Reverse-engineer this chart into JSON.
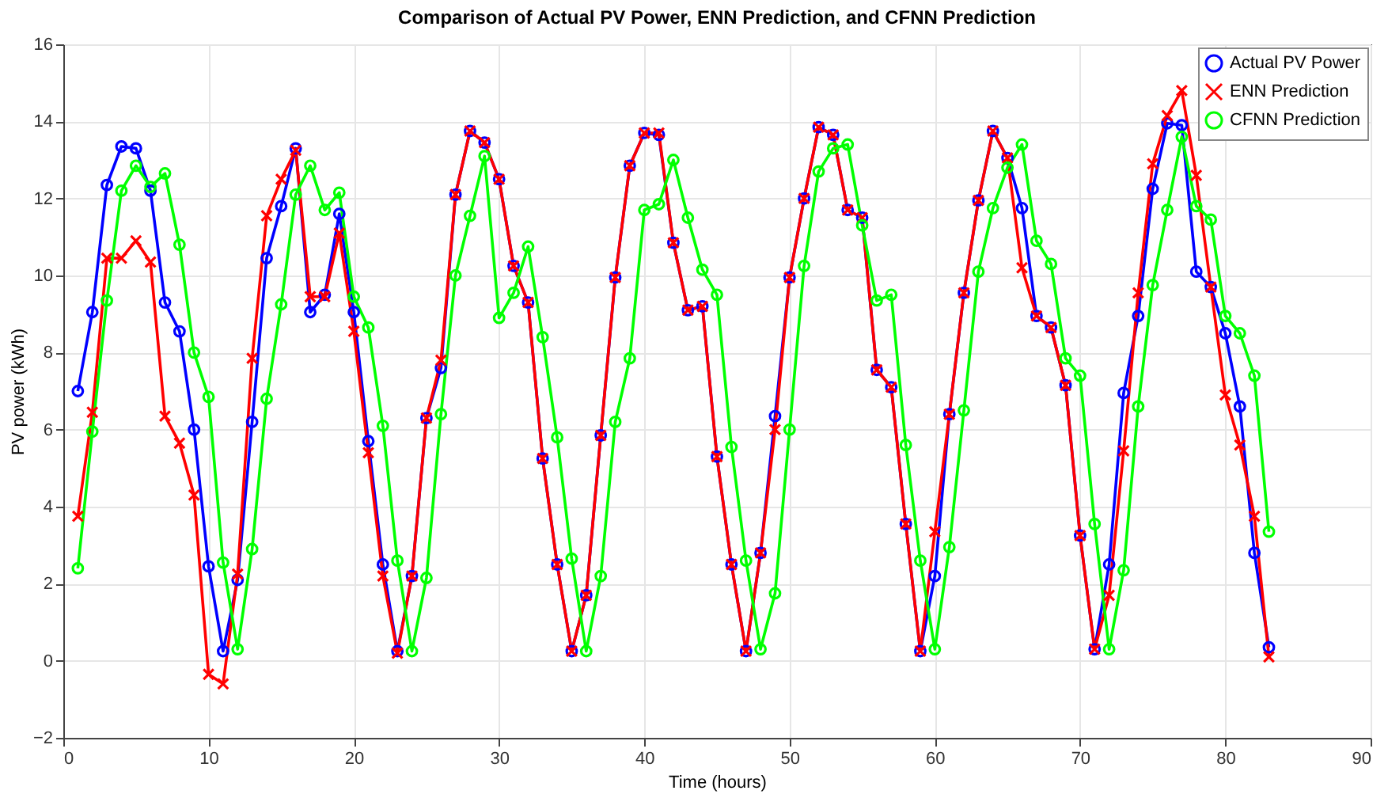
{
  "chart_data": {
    "type": "line",
    "title": "Comparison of Actual PV Power, ENN Prediction, and CFNN Prediction",
    "xlabel": "Time (hours)",
    "ylabel": "PV power (kWh)",
    "x": [
      1,
      2,
      3,
      4,
      5,
      6,
      7,
      8,
      9,
      10,
      11,
      12,
      13,
      14,
      15,
      16,
      17,
      18,
      19,
      20,
      21,
      22,
      23,
      24,
      25,
      26,
      27,
      28,
      29,
      30,
      31,
      32,
      33,
      34,
      35,
      36,
      37,
      38,
      39,
      40,
      41,
      42,
      43,
      44,
      45,
      46,
      47,
      48,
      49,
      50,
      51,
      52,
      53,
      54,
      55,
      56,
      57,
      58,
      59,
      60,
      61,
      62,
      63,
      64,
      65,
      66,
      67,
      68,
      69,
      70,
      71,
      72,
      73,
      74,
      75,
      76,
      77,
      78,
      79,
      80,
      81,
      82,
      83
    ],
    "series": [
      {
        "name": "Actual PV Power",
        "color": "#0000ff",
        "marker": "circle",
        "values": [
          7.0,
          9.05,
          12.35,
          13.35,
          13.3,
          12.2,
          9.3,
          8.55,
          6.0,
          2.45,
          0.25,
          2.1,
          6.2,
          10.45,
          11.8,
          13.3,
          9.05,
          9.5,
          11.6,
          9.05,
          5.7,
          2.5,
          0.25,
          2.2,
          6.3,
          7.6,
          12.1,
          13.75,
          13.45,
          12.5,
          10.25,
          9.3,
          5.25,
          2.5,
          0.25,
          1.7,
          5.85,
          9.95,
          12.85,
          13.7,
          13.65,
          10.85,
          9.1,
          9.2,
          5.3,
          2.5,
          0.25,
          2.8,
          6.35,
          9.95,
          12.0,
          13.85,
          13.65,
          11.7,
          11.5,
          7.55,
          7.1,
          3.55,
          0.25,
          2.2,
          6.4,
          9.55,
          11.95,
          13.75,
          13.05,
          11.75,
          8.95,
          8.65,
          7.15,
          3.25,
          0.3,
          2.5,
          6.95,
          8.95,
          12.25,
          13.95,
          13.9,
          10.1,
          9.7,
          8.5,
          6.6,
          2.8,
          0.35
        ]
      },
      {
        "name": "ENN Prediction",
        "color": "#ff0000",
        "marker": "cross",
        "values": [
          3.75,
          6.45,
          10.45,
          10.45,
          10.9,
          10.35,
          6.35,
          5.65,
          4.3,
          -0.35,
          -0.6,
          2.25,
          7.85,
          11.55,
          12.5,
          13.25,
          9.45,
          9.45,
          11.1,
          8.55,
          5.4,
          2.2,
          0.2,
          2.2,
          6.3,
          7.8,
          12.1,
          13.75,
          13.45,
          12.5,
          10.25,
          9.3,
          5.25,
          2.5,
          0.25,
          1.7,
          5.85,
          9.95,
          12.85,
          13.7,
          13.7,
          10.85,
          9.1,
          9.2,
          5.3,
          2.5,
          0.25,
          2.8,
          6.0,
          9.95,
          12.0,
          13.85,
          13.65,
          11.7,
          11.5,
          7.55,
          7.1,
          3.55,
          0.25,
          3.35,
          6.4,
          9.55,
          11.95,
          13.75,
          13.05,
          10.2,
          8.95,
          8.65,
          7.15,
          3.25,
          0.3,
          1.7,
          5.45,
          9.55,
          12.9,
          14.15,
          14.8,
          12.6,
          9.7,
          6.9,
          5.6,
          3.75,
          0.1
        ]
      },
      {
        "name": "CFNN Prediction",
        "color": "#00ff00",
        "marker": "circle",
        "values": [
          2.4,
          5.95,
          9.35,
          12.2,
          12.85,
          12.3,
          12.65,
          10.8,
          8.0,
          6.85,
          2.55,
          0.3,
          2.9,
          6.8,
          9.25,
          12.1,
          12.85,
          11.7,
          12.15,
          9.45,
          8.65,
          6.1,
          2.6,
          0.25,
          2.15,
          6.4,
          10.0,
          11.55,
          13.1,
          8.9,
          9.55,
          10.75,
          8.4,
          5.8,
          2.65,
          0.25,
          2.2,
          6.2,
          7.85,
          11.7,
          11.85,
          13.0,
          11.5,
          10.15,
          9.5,
          5.55,
          2.6,
          0.3,
          1.75,
          6.0,
          10.25,
          12.7,
          13.3,
          13.4,
          11.3,
          9.35,
          9.5,
          5.6,
          2.6,
          0.3,
          2.95,
          6.5,
          10.1,
          11.75,
          12.8,
          13.4,
          10.9,
          10.3,
          7.85,
          7.4,
          3.55,
          0.3,
          2.35,
          6.6,
          9.75,
          11.7,
          13.6,
          11.8,
          11.45,
          8.95,
          8.5,
          7.4,
          3.35
        ]
      }
    ],
    "xlim": [
      0,
      90
    ],
    "xticks": [
      0,
      10,
      20,
      30,
      40,
      50,
      60,
      70,
      80,
      90
    ],
    "ylim": [
      -2,
      16
    ],
    "yticks": [
      -2,
      0,
      2,
      4,
      6,
      8,
      10,
      12,
      14,
      16
    ],
    "grid": true,
    "legend": "top right",
    "line_style": "solid"
  }
}
